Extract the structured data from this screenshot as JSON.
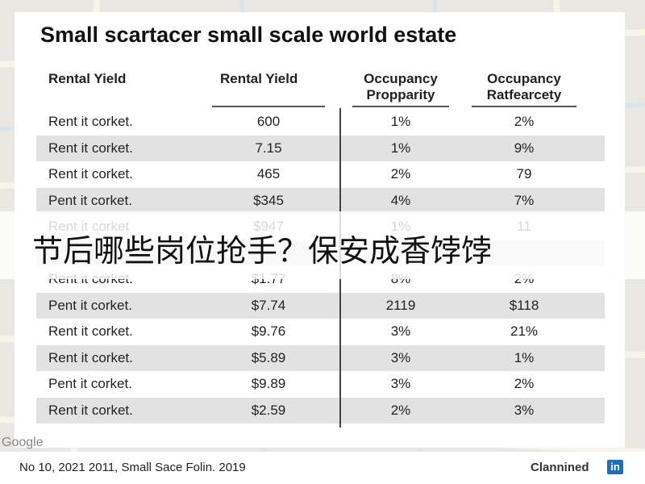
{
  "title": "Small scartacer small scale world estate",
  "table": {
    "headers": [
      "Rental Yield",
      "Rental Yield",
      "Occupancy Propparity",
      "Occupancy Ratfearcety"
    ],
    "rows": [
      [
        "Rent it corket.",
        "600",
        "1%",
        "2%"
      ],
      [
        "Rent it corket.",
        "7.15",
        "1%",
        "9%"
      ],
      [
        "Rent it corket.",
        "465",
        "2%",
        "79"
      ],
      [
        "Pent it corket.",
        "$345",
        "4%",
        "7%"
      ],
      [
        "Rent it corket",
        "$947",
        "1%",
        "11"
      ],
      [
        "Rent it corket.",
        "$1.77",
        "8%",
        "2%"
      ],
      [
        "Pent it corket.",
        "$7.74",
        "2119",
        "$118"
      ],
      [
        "Rent it corket.",
        "$9.76",
        "3%",
        "21%"
      ],
      [
        "Rent it corket.",
        "$5.89",
        "3%",
        "1%"
      ],
      [
        "Pent it corket.",
        "$9.89",
        "3%",
        "2%"
      ],
      [
        "Rent it corket.",
        "$2.59",
        "2%",
        "3%"
      ]
    ]
  },
  "banner": "节后哪些岗位抢手？保安成香饽饽",
  "map_label": "Google",
  "footer": {
    "caption": "No 10, 2021 2011, Small Sace Folin. 2019",
    "brand": "Clannined",
    "logo": "in"
  }
}
